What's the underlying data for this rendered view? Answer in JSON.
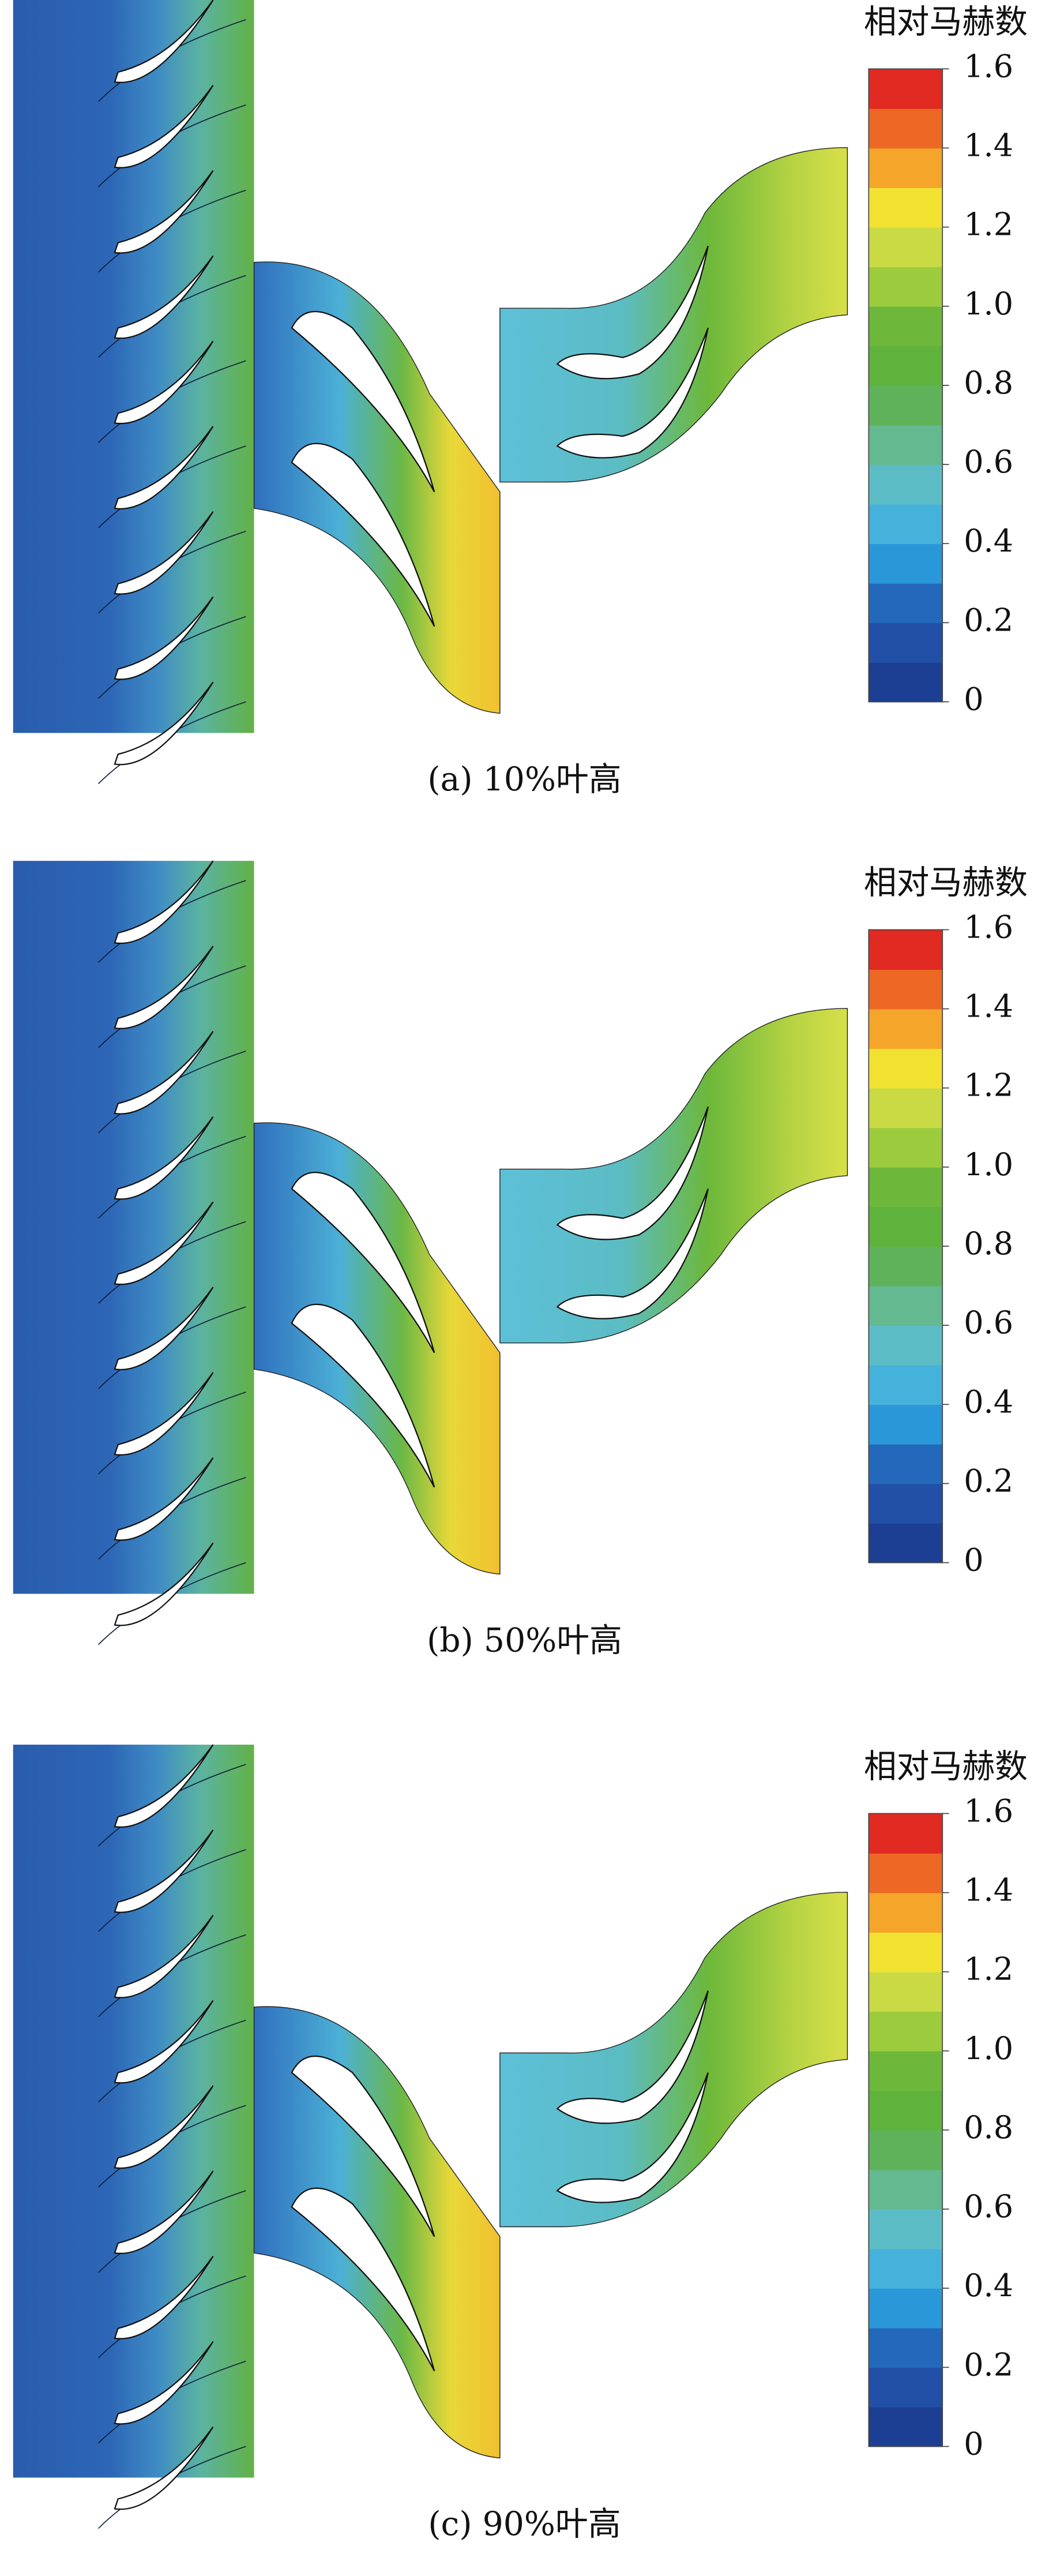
{
  "chart_data": [
    {
      "type": "contour",
      "title": "相对马赫数",
      "caption": "(a) 10%叶高",
      "clim": [
        0,
        1.6
      ],
      "cticks": [
        0,
        0.2,
        0.4,
        0.6,
        0.8,
        {
          "value": 1,
          "label": "1.0"
        },
        1.2,
        1.4,
        1.6
      ],
      "colors": [
        "#1d3f93",
        "#2150a6",
        "#2468bb",
        "#2a98d8",
        "#45b2dc",
        "#5cbcc6",
        "#64b990",
        "#5fb25a",
        "#5fb23c",
        "#6db83a",
        "#9ccb3e",
        "#c9da44",
        "#f1e232",
        "#f4a52a",
        "#ec6824",
        "#e02a22"
      ]
    },
    {
      "type": "contour",
      "title": "相对马赫数",
      "caption": "(b) 50%叶高",
      "clim": [
        0,
        1.6
      ],
      "cticks": [
        0,
        0.2,
        0.4,
        0.6,
        0.8,
        {
          "value": 1,
          "label": "1.0"
        },
        1.2,
        1.4,
        1.6
      ],
      "colors": [
        "#1d3f93",
        "#2150a6",
        "#2468bb",
        "#2a98d8",
        "#45b2dc",
        "#5cbcc6",
        "#64b990",
        "#5fb25a",
        "#5fb23c",
        "#6db83a",
        "#9ccb3e",
        "#c9da44",
        "#f1e232",
        "#f4a52a",
        "#ec6824",
        "#e02a22"
      ]
    },
    {
      "type": "contour",
      "title": "相对马赫数",
      "caption": "(c) 90%叶高",
      "clim": [
        0,
        1.6
      ],
      "cticks": [
        0,
        0.2,
        0.4,
        0.6,
        0.8,
        {
          "value": 1,
          "label": "1.0"
        },
        1.2,
        1.4,
        1.6
      ],
      "colors": [
        "#1d3f93",
        "#2150a6",
        "#2468bb",
        "#2a98d8",
        "#45b2dc",
        "#5cbcc6",
        "#64b990",
        "#5fb25a",
        "#5fb23c",
        "#6db83a",
        "#9ccb3e",
        "#c9da44",
        "#f1e232",
        "#f4a52a",
        "#ec6824",
        "#e02a22"
      ]
    }
  ]
}
